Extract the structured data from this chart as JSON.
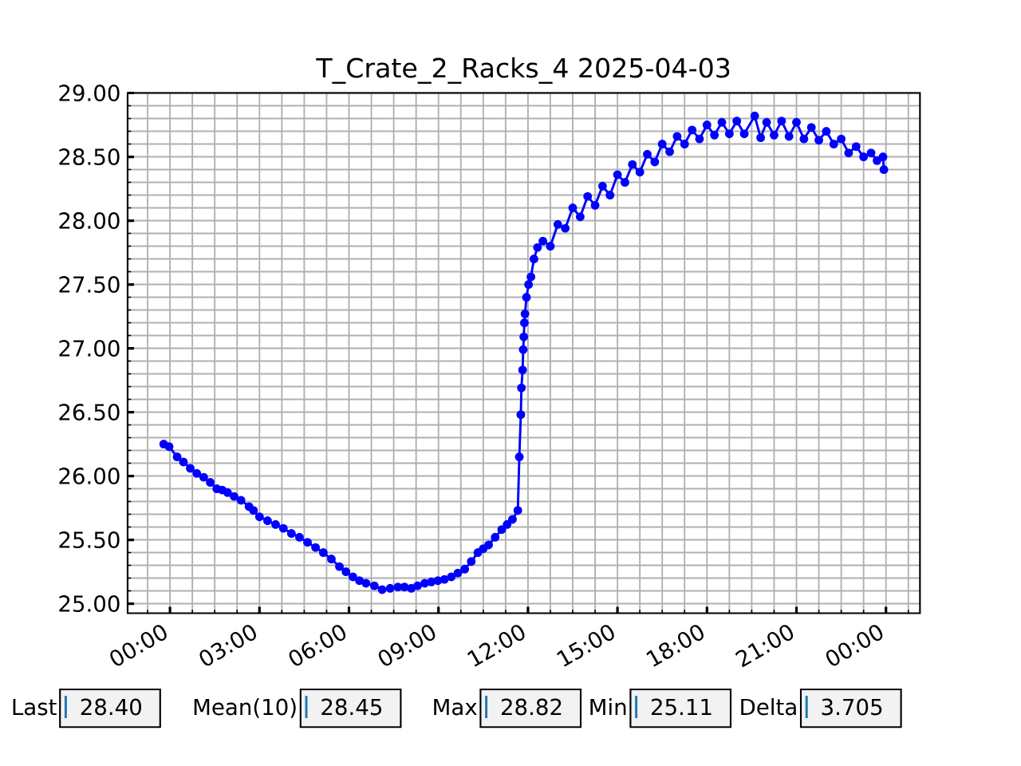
{
  "chart_data": {
    "type": "line",
    "title": "T_Crate_2_Racks_4 2025-04-03",
    "x": [
      -0.21,
      -0.03,
      0.24,
      0.45,
      0.68,
      0.9,
      1.13,
      1.35,
      1.57,
      1.75,
      1.93,
      2.15,
      2.38,
      2.65,
      2.8,
      3.0,
      3.27,
      3.54,
      3.8,
      4.07,
      4.34,
      4.61,
      4.88,
      5.14,
      5.41,
      5.68,
      5.9,
      6.13,
      6.35,
      6.57,
      6.85,
      7.11,
      7.38,
      7.64,
      7.86,
      8.09,
      8.3,
      8.54,
      8.76,
      8.98,
      9.2,
      9.43,
      9.65,
      9.88,
      10.1,
      10.32,
      10.5,
      10.68,
      10.9,
      11.12,
      11.3,
      11.48,
      11.66,
      11.71,
      11.76,
      11.78,
      11.82,
      11.84,
      11.86,
      11.88,
      11.9,
      11.95,
      12.02,
      12.1,
      12.2,
      12.32,
      12.5,
      12.75,
      13.0,
      13.25,
      13.5,
      13.75,
      14.0,
      14.25,
      14.5,
      14.75,
      15.0,
      15.25,
      15.5,
      15.75,
      16.0,
      16.25,
      16.5,
      16.75,
      17.0,
      17.25,
      17.5,
      17.75,
      18.0,
      18.25,
      18.5,
      18.75,
      19.0,
      19.25,
      19.6,
      19.8,
      20.0,
      20.25,
      20.5,
      20.75,
      21.0,
      21.25,
      21.5,
      21.75,
      22.0,
      22.25,
      22.5,
      22.75,
      23.0,
      23.25,
      23.5,
      23.7,
      23.9,
      23.93
    ],
    "values": [
      26.25,
      26.23,
      26.15,
      26.11,
      26.06,
      26.02,
      25.99,
      25.95,
      25.9,
      25.89,
      25.87,
      25.84,
      25.81,
      25.76,
      25.73,
      25.68,
      25.65,
      25.62,
      25.59,
      25.55,
      25.52,
      25.48,
      25.44,
      25.4,
      25.35,
      25.29,
      25.25,
      25.21,
      25.18,
      25.16,
      25.14,
      25.11,
      25.12,
      25.13,
      25.13,
      25.12,
      25.14,
      25.16,
      25.17,
      25.18,
      25.19,
      25.21,
      25.24,
      25.27,
      25.33,
      25.4,
      25.43,
      25.46,
      25.52,
      25.58,
      25.62,
      25.66,
      25.73,
      26.15,
      26.48,
      26.69,
      26.83,
      26.99,
      27.09,
      27.2,
      27.27,
      27.4,
      27.5,
      27.56,
      27.7,
      27.79,
      27.84,
      27.8,
      27.97,
      27.94,
      28.1,
      28.03,
      28.19,
      28.12,
      28.27,
      28.2,
      28.36,
      28.3,
      28.44,
      28.38,
      28.52,
      28.46,
      28.6,
      28.54,
      28.66,
      28.6,
      28.71,
      28.64,
      28.75,
      28.67,
      28.77,
      28.68,
      28.78,
      28.68,
      28.82,
      28.65,
      28.77,
      28.67,
      28.78,
      28.66,
      28.77,
      28.64,
      28.73,
      28.63,
      28.7,
      28.6,
      28.64,
      28.53,
      28.58,
      28.5,
      28.53,
      28.47,
      28.5,
      28.4
    ],
    "color": "#0000ff",
    "marker": "circle",
    "grid": true,
    "xlim": [
      -1.42,
      25.14
    ],
    "ylim": [
      24.925,
      29.0
    ],
    "xticks": [
      {
        "value": -0.75,
        "label": null
      },
      {
        "value": 0,
        "label": "00:00"
      },
      {
        "value": 0.75,
        "label": null
      },
      {
        "value": 1.5,
        "label": null
      },
      {
        "value": 2.25,
        "label": null
      },
      {
        "value": 3,
        "label": "03:00"
      },
      {
        "value": 3.75,
        "label": null
      },
      {
        "value": 4.5,
        "label": null
      },
      {
        "value": 5.25,
        "label": null
      },
      {
        "value": 6,
        "label": "06:00"
      },
      {
        "value": 6.75,
        "label": null
      },
      {
        "value": 7.5,
        "label": null
      },
      {
        "value": 8.25,
        "label": null
      },
      {
        "value": 9,
        "label": "09:00"
      },
      {
        "value": 9.75,
        "label": null
      },
      {
        "value": 10.5,
        "label": null
      },
      {
        "value": 11.25,
        "label": null
      },
      {
        "value": 12,
        "label": "12:00"
      },
      {
        "value": 12.75,
        "label": null
      },
      {
        "value": 13.5,
        "label": null
      },
      {
        "value": 14.25,
        "label": null
      },
      {
        "value": 15,
        "label": "15:00"
      },
      {
        "value": 15.75,
        "label": null
      },
      {
        "value": 16.5,
        "label": null
      },
      {
        "value": 17.25,
        "label": null
      },
      {
        "value": 18,
        "label": "18:00"
      },
      {
        "value": 18.75,
        "label": null
      },
      {
        "value": 19.5,
        "label": null
      },
      {
        "value": 20.25,
        "label": null
      },
      {
        "value": 21,
        "label": "21:00"
      },
      {
        "value": 21.75,
        "label": null
      },
      {
        "value": 22.5,
        "label": null
      },
      {
        "value": 23.25,
        "label": null
      },
      {
        "value": 24,
        "label": "00:00"
      },
      {
        "value": 24.75,
        "label": null
      }
    ],
    "yticks": [
      {
        "value": 25.0,
        "label": "25.00"
      },
      {
        "value": 25.1,
        "label": null
      },
      {
        "value": 25.2,
        "label": null
      },
      {
        "value": 25.3,
        "label": null
      },
      {
        "value": 25.4,
        "label": null
      },
      {
        "value": 25.5,
        "label": "25.50"
      },
      {
        "value": 25.6,
        "label": null
      },
      {
        "value": 25.7,
        "label": null
      },
      {
        "value": 25.8,
        "label": null
      },
      {
        "value": 25.9,
        "label": null
      },
      {
        "value": 26.0,
        "label": "26.00"
      },
      {
        "value": 26.1,
        "label": null
      },
      {
        "value": 26.2,
        "label": null
      },
      {
        "value": 26.3,
        "label": null
      },
      {
        "value": 26.4,
        "label": null
      },
      {
        "value": 26.5,
        "label": "26.50"
      },
      {
        "value": 26.6,
        "label": null
      },
      {
        "value": 26.7,
        "label": null
      },
      {
        "value": 26.8,
        "label": null
      },
      {
        "value": 26.9,
        "label": null
      },
      {
        "value": 27.0,
        "label": "27.00"
      },
      {
        "value": 27.1,
        "label": null
      },
      {
        "value": 27.2,
        "label": null
      },
      {
        "value": 27.3,
        "label": null
      },
      {
        "value": 27.4,
        "label": null
      },
      {
        "value": 27.5,
        "label": "27.50"
      },
      {
        "value": 27.6,
        "label": null
      },
      {
        "value": 27.7,
        "label": null
      },
      {
        "value": 27.8,
        "label": null
      },
      {
        "value": 27.9,
        "label": null
      },
      {
        "value": 28.0,
        "label": "28.00"
      },
      {
        "value": 28.1,
        "label": null
      },
      {
        "value": 28.2,
        "label": null
      },
      {
        "value": 28.3,
        "label": null
      },
      {
        "value": 28.4,
        "label": null
      },
      {
        "value": 28.5,
        "label": "28.50"
      },
      {
        "value": 28.6,
        "label": null
      },
      {
        "value": 28.7,
        "label": null
      },
      {
        "value": 28.8,
        "label": null
      },
      {
        "value": 28.9,
        "label": null
      },
      {
        "value": 29.0,
        "label": "29.00"
      }
    ],
    "annotations": [
      "Last",
      "28.40",
      "Mean(10)",
      "28.45",
      "Max",
      "28.82",
      "Min",
      "25.11",
      "Delta",
      "3.705"
    ]
  }
}
